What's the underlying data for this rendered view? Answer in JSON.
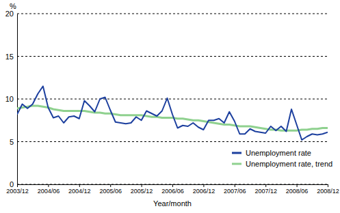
{
  "chart_data": {
    "type": "line",
    "x_label": "Year/month",
    "y_label": "%",
    "categories": [
      "2003/12",
      null,
      null,
      null,
      null,
      null,
      "2004/06",
      null,
      null,
      null,
      null,
      null,
      "2004/12",
      null,
      null,
      null,
      null,
      null,
      "2005/06",
      null,
      null,
      null,
      null,
      null,
      "2005/12",
      null,
      null,
      null,
      null,
      null,
      "2006/06",
      null,
      null,
      null,
      null,
      null,
      "2006/12",
      null,
      null,
      null,
      null,
      null,
      "2007/06",
      null,
      null,
      null,
      null,
      null,
      "2007/12",
      null,
      null,
      null,
      null,
      null,
      "2008/06",
      null,
      null,
      null,
      null,
      null,
      "2008/12"
    ],
    "series": [
      {
        "name": "Unemployment rate",
        "color": "#1c3f9e",
        "values": [
          8.2,
          9.4,
          8.9,
          9.4,
          10.6,
          11.5,
          9.0,
          7.8,
          8.0,
          7.2,
          7.9,
          8.0,
          7.7,
          9.8,
          9.2,
          8.5,
          10.0,
          10.2,
          8.7,
          7.3,
          7.2,
          7.1,
          7.2,
          7.9,
          7.5,
          8.6,
          8.3,
          8.0,
          8.6,
          10.1,
          8.2,
          6.6,
          6.9,
          6.8,
          7.2,
          6.7,
          6.4,
          7.5,
          7.5,
          7.7,
          7.2,
          8.5,
          7.4,
          5.9,
          5.9,
          6.5,
          6.2,
          6.1,
          6.0,
          6.8,
          6.3,
          6.8,
          6.2,
          8.8,
          7.0,
          5.2,
          5.6,
          5.9,
          5.8,
          5.9,
          6.1
        ]
      },
      {
        "name": "Unemployment rate, trend",
        "color": "#8fd18f",
        "values": [
          8.9,
          9.0,
          9.1,
          9.2,
          9.2,
          9.1,
          9.0,
          8.8,
          8.7,
          8.6,
          8.6,
          8.6,
          8.6,
          8.6,
          8.5,
          8.4,
          8.4,
          8.3,
          8.3,
          8.2,
          8.1,
          8.1,
          8.1,
          8.1,
          8.1,
          8.0,
          7.9,
          7.9,
          7.8,
          7.8,
          7.8,
          7.7,
          7.7,
          7.6,
          7.5,
          7.5,
          7.4,
          7.3,
          7.2,
          7.1,
          7.0,
          7.0,
          6.9,
          6.8,
          6.8,
          6.8,
          6.7,
          6.6,
          6.5,
          6.4,
          6.4,
          6.3,
          6.3,
          6.3,
          6.3,
          6.4,
          6.4,
          6.5,
          6.5,
          6.6,
          6.6
        ]
      }
    ],
    "ylim": [
      0,
      20
    ],
    "yticks": [
      0,
      5,
      10,
      15,
      20
    ],
    "grid": true,
    "legend": "lower right"
  }
}
